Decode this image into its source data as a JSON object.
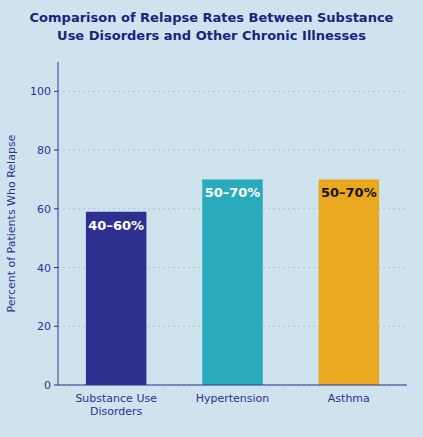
{
  "chart_data": {
    "type": "bar",
    "title": "Comparison of Relapse Rates Between Substance\nUse Disorders and Other Chronic Illnesses",
    "categories": [
      "Substance Use\nDisorders",
      "Hypertension",
      "Asthma"
    ],
    "values": [
      59,
      70,
      70
    ],
    "value_labels": [
      "40–60%",
      "50–70%",
      "50–70%"
    ],
    "data_labels": true,
    "colors": [
      "#2e3090",
      "#2aabbc",
      "#e8a820"
    ],
    "ylabel": "Percent of Patients Who Relapse",
    "ylim": [
      0,
      110
    ],
    "yticks": [
      0,
      20,
      40,
      60,
      80,
      100
    ],
    "grid": true
  }
}
